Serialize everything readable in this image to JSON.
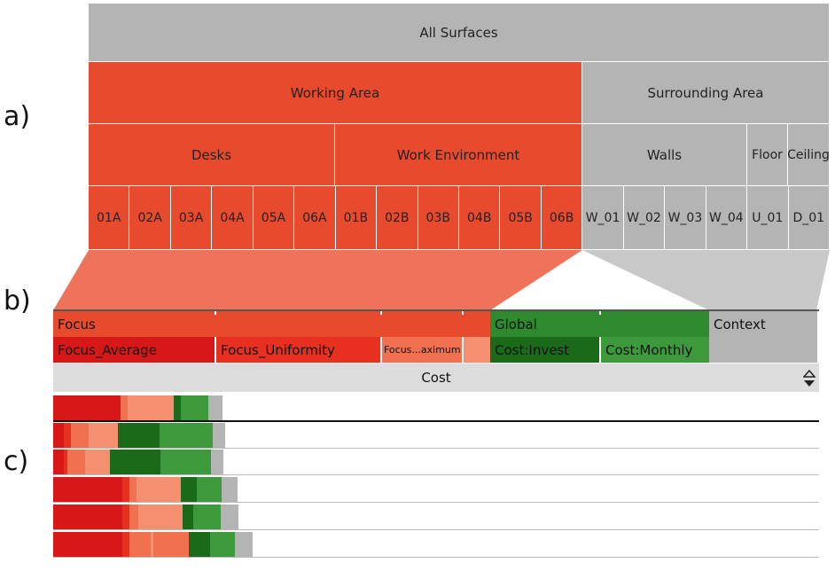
{
  "labels": {
    "a": "a)",
    "b": "b)",
    "c": "c)"
  },
  "hierarchy": {
    "root": "All Surfaces",
    "level1": [
      "Working Area",
      "Surrounding Area"
    ],
    "level2": [
      "Desks",
      "Work Environment",
      "Walls",
      "Floor",
      "Ceiling"
    ],
    "leaves": [
      "01A",
      "02A",
      "03A",
      "04A",
      "05A",
      "06A",
      "01B",
      "02B",
      "03B",
      "04B",
      "05B",
      "06B",
      "W_01",
      "W_02",
      "W_03",
      "W_04",
      "U_01",
      "D_01"
    ]
  },
  "table": {
    "groups": [
      "Focus",
      "Global",
      "Context"
    ],
    "columns": [
      "Focus_Average",
      "Focus_Uniformity",
      "Focus...aximum",
      "Cost:Invest",
      "Cost:Monthly"
    ],
    "sort_column": "Cost",
    "sort_icon": "sort-toggle-icon"
  },
  "colors": {
    "focus": "#e84a2e",
    "focus_avg": "#d81818",
    "focus_uni": "#e83020",
    "focus_max": "#f07050",
    "focus_extra": "#f49070",
    "global": "#2f8a2f",
    "cost_invest": "#1a6a1a",
    "cost_monthly": "#3c9a3c",
    "context": "#b4b4b4",
    "link": "#ef735a"
  },
  "chart_data": {
    "type": "bar",
    "stacked": true,
    "rows": [
      [
        76,
        8,
        52,
        8,
        31,
        16
      ],
      [
        12,
        8,
        20,
        33,
        47,
        60,
        14
      ],
      [
        12,
        4,
        20,
        28,
        57,
        57,
        14
      ],
      [
        78,
        8,
        8,
        50,
        18,
        28,
        18
      ],
      [
        78,
        8,
        10,
        50,
        12,
        31,
        20
      ],
      [
        78,
        8,
        24,
        3,
        40,
        24,
        28,
        20
      ]
    ]
  }
}
